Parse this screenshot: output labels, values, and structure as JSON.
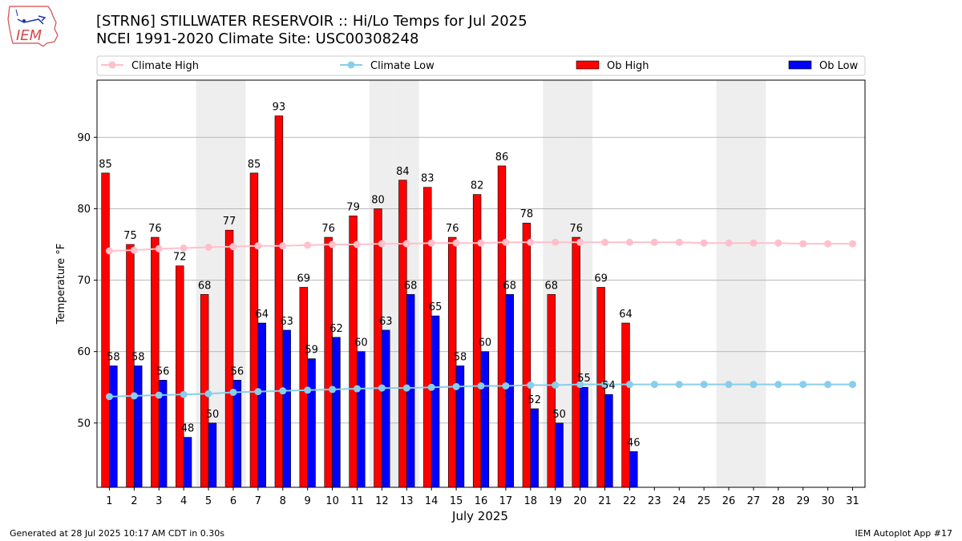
{
  "logo": {
    "text": "IEM"
  },
  "title": {
    "line1": "[STRN6] STILLWATER RESERVOIR :: Hi/Lo Temps for Jul 2025",
    "line2": "NCEI 1991-2020 Climate Site: USC00308248"
  },
  "footer": {
    "left": "Generated at 28 Jul 2025 10:17 AM CDT in 0.30s",
    "right": "IEM Autoplot App #17"
  },
  "colors": {
    "ob_high": "#ff0000",
    "ob_low": "#0000ff",
    "climate_high": "#ffc0cb",
    "climate_low": "#87ceeb",
    "weekend_shade": "#eeeeee",
    "grid": "#b0b0b0"
  },
  "chart_data": {
    "type": "bar",
    "xlabel": "July 2025",
    "ylabel": "Temperature °F",
    "ylim": [
      41,
      98
    ],
    "yticks": [
      50,
      60,
      70,
      80,
      90
    ],
    "grid": "horizontal",
    "legend_position": "top",
    "days": [
      1,
      2,
      3,
      4,
      5,
      6,
      7,
      8,
      9,
      10,
      11,
      12,
      13,
      14,
      15,
      16,
      17,
      18,
      19,
      20,
      21,
      22,
      23,
      24,
      25,
      26,
      27,
      28,
      29,
      30,
      31
    ],
    "weekend_days": [
      5,
      6,
      12,
      13,
      19,
      20,
      26,
      27
    ],
    "series": [
      {
        "name": "Climate High",
        "kind": "line",
        "values": [
          74.1,
          74.2,
          74.4,
          74.5,
          74.6,
          74.7,
          74.8,
          74.8,
          74.9,
          75.0,
          75.0,
          75.1,
          75.1,
          75.2,
          75.2,
          75.2,
          75.3,
          75.3,
          75.3,
          75.3,
          75.3,
          75.3,
          75.3,
          75.3,
          75.2,
          75.2,
          75.2,
          75.2,
          75.1,
          75.1,
          75.1
        ]
      },
      {
        "name": "Climate Low",
        "kind": "line",
        "values": [
          53.7,
          53.8,
          53.9,
          54.0,
          54.1,
          54.3,
          54.4,
          54.5,
          54.6,
          54.7,
          54.8,
          54.9,
          54.9,
          55.0,
          55.1,
          55.2,
          55.2,
          55.3,
          55.3,
          55.4,
          55.4,
          55.4,
          55.4,
          55.4,
          55.4,
          55.4,
          55.4,
          55.4,
          55.4,
          55.4,
          55.4
        ]
      },
      {
        "name": "Ob High",
        "kind": "bar",
        "values": [
          85,
          75,
          76,
          72,
          68,
          77,
          85,
          93,
          69,
          76,
          79,
          80,
          84,
          83,
          76,
          82,
          86,
          78,
          68,
          76,
          69,
          64
        ]
      },
      {
        "name": "Ob Low",
        "kind": "bar",
        "values": [
          58,
          58,
          56,
          48,
          50,
          56,
          64,
          63,
          59,
          62,
          60,
          63,
          68,
          65,
          58,
          60,
          68,
          52,
          50,
          55,
          54,
          46
        ]
      }
    ]
  }
}
